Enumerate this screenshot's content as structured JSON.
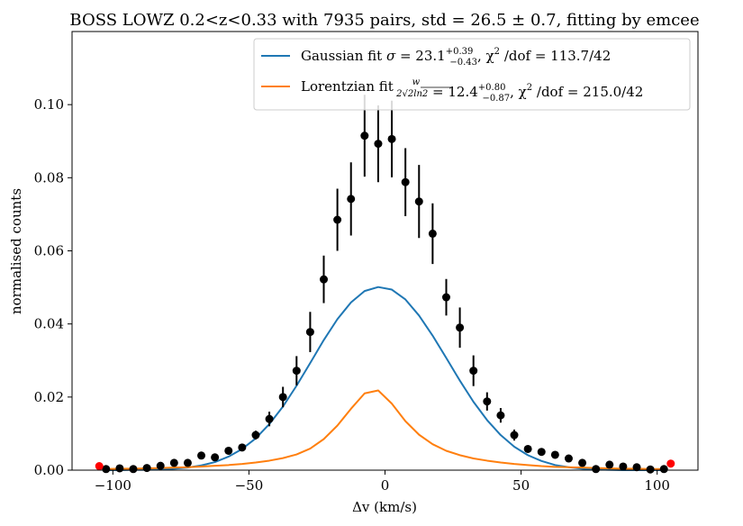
{
  "chart_data": {
    "type": "scatter",
    "title": "BOSS LOWZ 0.2<z<0.33 with 7935 pairs, std = 26.5 ± 0.7, fitting by emcee",
    "xlabel": "Δv (km/s)",
    "ylabel": "normalised counts",
    "xlim": [
      -115,
      115
    ],
    "ylim": [
      0,
      0.12
    ],
    "xticks": [
      -100,
      -50,
      0,
      50,
      100
    ],
    "xtick_labels": [
      "−100",
      "−50",
      "0",
      "50",
      "100"
    ],
    "yticks": [
      0.0,
      0.02,
      0.04,
      0.06,
      0.08,
      0.1
    ],
    "ytick_labels": [
      "0.00",
      "0.02",
      "0.04",
      "0.06",
      "0.08",
      "0.10"
    ],
    "grid": false,
    "legend_position": "top-right",
    "series": [
      {
        "name": "data",
        "kind": "errorbar",
        "color": "#000000",
        "x": [
          -102.5,
          -97.5,
          -92.5,
          -87.5,
          -82.5,
          -77.5,
          -72.5,
          -67.5,
          -62.5,
          -57.5,
          -52.5,
          -47.5,
          -42.5,
          -37.5,
          -32.5,
          -27.5,
          -22.5,
          -17.5,
          -12.5,
          -7.5,
          -2.5,
          2.5,
          7.5,
          12.5,
          17.5,
          22.5,
          27.5,
          32.5,
          37.5,
          42.5,
          47.5,
          52.5,
          57.5,
          62.5,
          67.5,
          72.5,
          77.5,
          82.5,
          87.5,
          92.5,
          97.5,
          102.5
        ],
        "y": [
          0.0003,
          0.0005,
          0.0003,
          0.0006,
          0.0012,
          0.002,
          0.002,
          0.004,
          0.0035,
          0.0053,
          0.0062,
          0.0096,
          0.014,
          0.02,
          0.0272,
          0.0378,
          0.0522,
          0.0685,
          0.0742,
          0.0915,
          0.0893,
          0.0906,
          0.0788,
          0.0735,
          0.0647,
          0.0473,
          0.039,
          0.0272,
          0.0188,
          0.015,
          0.0096,
          0.0058,
          0.005,
          0.0042,
          0.0032,
          0.002,
          0.0003,
          0.0015,
          0.001,
          0.0008,
          0.0002,
          0.0003
        ],
        "yerr": [
          0.0002,
          0.0002,
          0.0002,
          0.0002,
          0.0004,
          0.0004,
          0.0004,
          0.0006,
          0.0006,
          0.0007,
          0.0008,
          0.0012,
          0.002,
          0.0028,
          0.004,
          0.0055,
          0.0065,
          0.0085,
          0.01,
          0.0112,
          0.0105,
          0.0105,
          0.0093,
          0.01,
          0.0083,
          0.005,
          0.0055,
          0.0042,
          0.0025,
          0.002,
          0.0015,
          0.0008,
          0.0007,
          0.0006,
          0.0005,
          0.0004,
          0.0002,
          0.0004,
          0.0003,
          0.0003,
          0.0002,
          0.0002
        ]
      },
      {
        "name": "edge",
        "kind": "points",
        "color": "#ff0000",
        "x": [
          -105,
          105
        ],
        "y": [
          0.0011,
          0.0018
        ]
      },
      {
        "name": "Gaussian fit",
        "kind": "line",
        "color": "#1f77b4",
        "x": [
          -102.5,
          -97.5,
          -92.5,
          -87.5,
          -82.5,
          -77.5,
          -72.5,
          -67.5,
          -62.5,
          -57.5,
          -52.5,
          -47.5,
          -42.5,
          -37.5,
          -32.5,
          -27.5,
          -22.5,
          -17.5,
          -12.5,
          -7.5,
          -2.5,
          2.5,
          7.5,
          12.5,
          17.5,
          22.5,
          27.5,
          32.5,
          37.5,
          42.5,
          47.5,
          52.5,
          57.5,
          62.5,
          67.5,
          72.5,
          77.5,
          82.5,
          87.5,
          92.5,
          97.5,
          102.5
        ],
        "y": [
          0.0,
          0.0,
          0.0001,
          0.0001,
          0.0002,
          0.0004,
          0.0007,
          0.0013,
          0.0022,
          0.0037,
          0.0058,
          0.0087,
          0.0126,
          0.0174,
          0.0231,
          0.0293,
          0.0356,
          0.0413,
          0.0459,
          0.049,
          0.0501,
          0.0494,
          0.0467,
          0.0423,
          0.0368,
          0.0307,
          0.0245,
          0.0187,
          0.0137,
          0.0096,
          0.0064,
          0.0041,
          0.0025,
          0.0014,
          0.0008,
          0.0004,
          0.0002,
          0.0001,
          0.0,
          0.0,
          0.0,
          0.0
        ]
      },
      {
        "name": "Lorentzian fit",
        "kind": "line",
        "color": "#ff7f0e",
        "x": [
          -102.5,
          -97.5,
          -92.5,
          -87.5,
          -82.5,
          -77.5,
          -72.5,
          -67.5,
          -62.5,
          -57.5,
          -52.5,
          -47.5,
          -42.5,
          -37.5,
          -32.5,
          -27.5,
          -22.5,
          -17.5,
          -12.5,
          -7.5,
          -2.5,
          2.5,
          7.5,
          12.5,
          17.5,
          22.5,
          27.5,
          32.5,
          37.5,
          42.5,
          47.5,
          52.5,
          57.5,
          62.5,
          67.5,
          72.5,
          77.5,
          82.5,
          87.5,
          92.5,
          97.5,
          102.5
        ],
        "y": [
          0.0003,
          0.0004,
          0.0004,
          0.0005,
          0.0006,
          0.0007,
          0.0008,
          0.001,
          0.0012,
          0.0014,
          0.0017,
          0.0021,
          0.0026,
          0.0033,
          0.0043,
          0.0059,
          0.0085,
          0.0122,
          0.0168,
          0.021,
          0.0218,
          0.0182,
          0.0134,
          0.0097,
          0.0071,
          0.0053,
          0.0041,
          0.0032,
          0.0026,
          0.0021,
          0.0017,
          0.0014,
          0.0011,
          0.0009,
          0.0008,
          0.0007,
          0.0006,
          0.0005,
          0.0004,
          0.0004,
          0.0003,
          0.0003
        ]
      }
    ],
    "legend": [
      {
        "series": "Gaussian fit",
        "color": "#1f77b4",
        "prefix": "Gaussian fit ",
        "symbol": "σ",
        "value": " = 23.1",
        "sup": "+0.39",
        "sub": "−0.43",
        "suffix": ", χ",
        "suffix2": " /dof = 113.7/42"
      },
      {
        "series": "Lorentzian fit",
        "color": "#ff7f0e",
        "prefix": "Lorentzian fit ",
        "frac_num": "w",
        "frac_den": "2√2ln2",
        "value": " = 12.4",
        "sup": "+0.80",
        "sub": "−0.87",
        "suffix": ", χ",
        "suffix2": " /dof = 215.0/42"
      }
    ]
  }
}
